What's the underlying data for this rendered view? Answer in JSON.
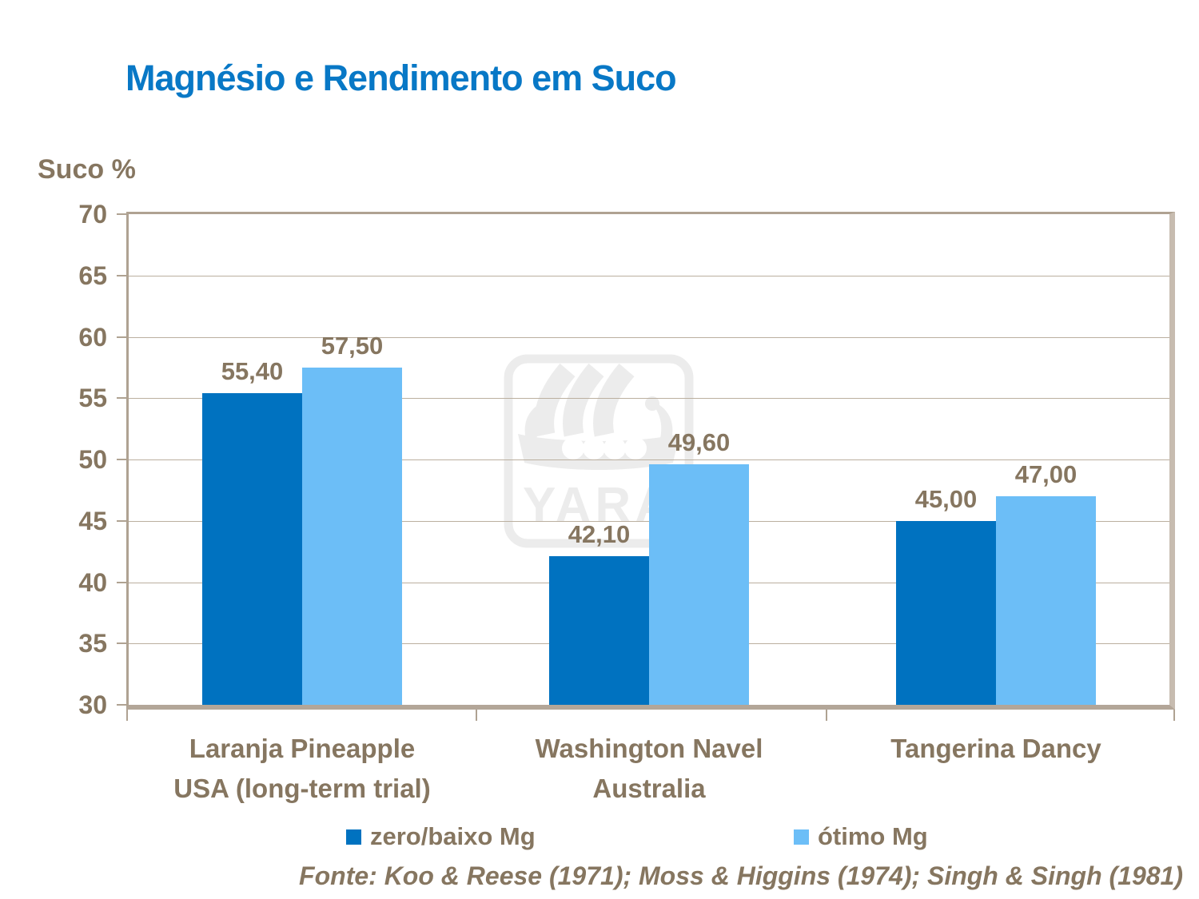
{
  "slide": {
    "title": "Magnésio e Rendimento em Suco",
    "footer": "Fonte: Koo & Reese (1971); Moss & Higgins (1974); Singh & Singh (1981)",
    "watermark_text": "YARA"
  },
  "colors": {
    "title_blue": "#0878C6",
    "text_brown": "#867660",
    "frame_tan": "#AFA292",
    "gridline_tan": "#BBAF9F",
    "series_dark_blue": "#0072C0",
    "series_light_blue": "#6CBEF7",
    "watermark_gray": "#ECECEC"
  },
  "chart_data": {
    "type": "bar",
    "title": "Magnésio e Rendimento em Suco",
    "xlabel": "",
    "ylabel": "Suco %",
    "ylim": [
      30,
      70
    ],
    "yticks": [
      30,
      35,
      40,
      45,
      50,
      55,
      60,
      65,
      70
    ],
    "grid": true,
    "legend_position": "bottom",
    "categories": [
      "Laranja Pineapple USA (long-term trial)",
      "Washington Navel Australia",
      "Tangerina Dancy"
    ],
    "categories_lines": [
      [
        "Laranja Pineapple",
        "USA (long-term trial)"
      ],
      [
        "Washington Navel",
        "Australia"
      ],
      [
        "Tangerina Dancy"
      ]
    ],
    "series": [
      {
        "name": "zero/baixo Mg",
        "color": "#0072C0",
        "values": [
          55.4,
          42.1,
          45.0
        ],
        "labels": [
          "55,40",
          "42,10",
          "45,00"
        ]
      },
      {
        "name": "ótimo Mg",
        "color": "#6CBEF7",
        "values": [
          57.5,
          49.6,
          47.0
        ],
        "labels": [
          "57,50",
          "49,60",
          "47,00"
        ]
      }
    ]
  }
}
